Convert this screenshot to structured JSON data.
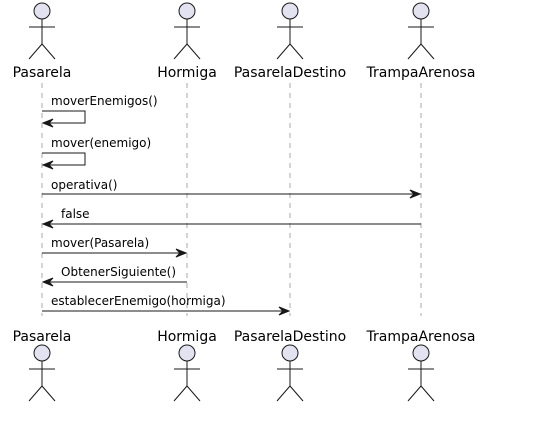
{
  "colors": {
    "actor_fill": "#E2E2F0",
    "line": "#181818",
    "lifeline": "#A8A8A8",
    "background": "#FFFFFF"
  },
  "participants": [
    {
      "id": "pasarela",
      "label": "Pasarela"
    },
    {
      "id": "hormiga",
      "label": "Hormiga"
    },
    {
      "id": "pasareladestino",
      "label": "PasarelaDestino"
    },
    {
      "id": "trampaarenosa",
      "label": "TrampaArenosa"
    }
  ],
  "messages": [
    {
      "from": "pasarela",
      "to": "pasarela",
      "label": "moverEnemigos()"
    },
    {
      "from": "pasarela",
      "to": "pasarela",
      "label": "mover(enemigo)"
    },
    {
      "from": "pasarela",
      "to": "trampaarenosa",
      "label": "operativa()"
    },
    {
      "from": "trampaarenosa",
      "to": "pasarela",
      "label": "false"
    },
    {
      "from": "pasarela",
      "to": "hormiga",
      "label": "mover(Pasarela)"
    },
    {
      "from": "hormiga",
      "to": "pasarela",
      "label": "ObtenerSiguiente()"
    },
    {
      "from": "pasarela",
      "to": "pasareladestino",
      "label": "establecerEnemigo(hormiga)"
    }
  ]
}
